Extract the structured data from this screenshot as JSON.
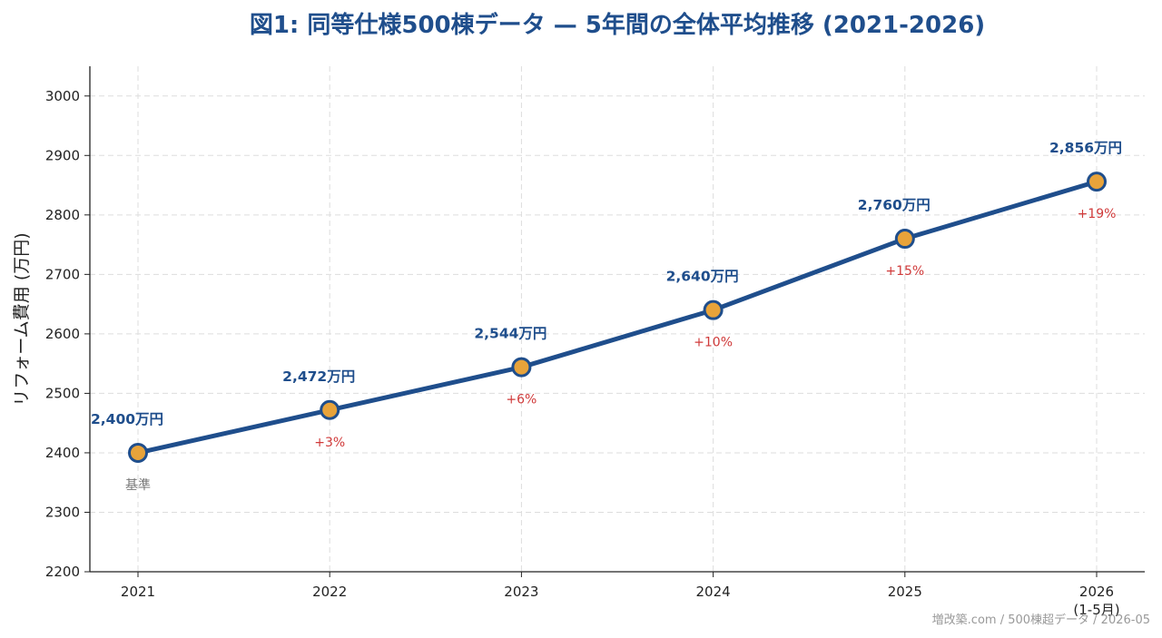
{
  "colors": {
    "title": "#1f4e8c",
    "line": "#1f4e8c",
    "marker_fill": "#e8a33a",
    "marker_edge": "#1f4e8c",
    "change_label": "#d03a3a",
    "base_label": "#777777",
    "grid": "#dddddd",
    "source": "#999999"
  },
  "chart_data": {
    "type": "line",
    "title": "図1: 同等仕様500棟データ — 5年間の全体平均推移 (2021-2026)",
    "xlabel": "",
    "ylabel": "リフォーム費用 (万円)",
    "categories": [
      "2021",
      "2022",
      "2023",
      "2024",
      "2025",
      "2026"
    ],
    "category_sublabels": [
      "",
      "",
      "",
      "",
      "",
      "(1-5月)"
    ],
    "values": [
      2400,
      2472,
      2544,
      2640,
      2760,
      2856
    ],
    "value_labels": [
      "2,400万円",
      "2,472万円",
      "2,544万円",
      "2,640万円",
      "2,760万円",
      "2,856万円"
    ],
    "change_labels": [
      "基準",
      "+3%",
      "+6%",
      "+10%",
      "+15%",
      "+19%"
    ],
    "ylim": [
      2200,
      3050
    ],
    "yticks": [
      2200,
      2300,
      2400,
      2500,
      2600,
      2700,
      2800,
      2900,
      3000
    ],
    "grid": true,
    "legend": "none"
  },
  "source": "増改築.com / 500棟超データ / 2026-05"
}
